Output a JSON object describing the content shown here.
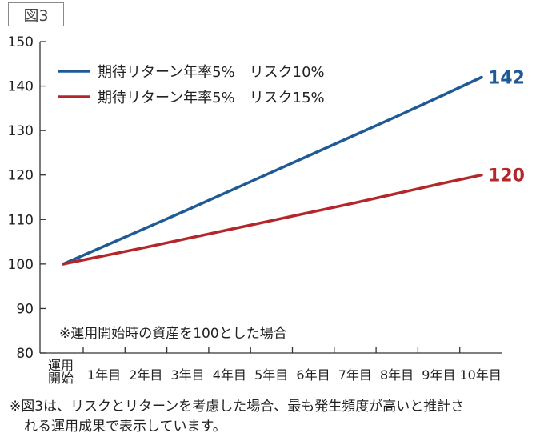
{
  "figure_tag": "図3",
  "chart_data": {
    "type": "line",
    "categories": [
      "運用\n開始",
      "1年目",
      "2年目",
      "3年目",
      "4年目",
      "5年目",
      "6年目",
      "7年目",
      "8年目",
      "9年目",
      "10年目"
    ],
    "y_ticks": [
      80,
      90,
      100,
      110,
      120,
      130,
      140,
      150
    ],
    "ylim": [
      80,
      150
    ],
    "grid": false,
    "legend_position": "top-left",
    "series": [
      {
        "name": "期待リターン年率5%　リスク10%",
        "color": "#1f5a95",
        "values": [
          100,
          104.1,
          108.2,
          112.3,
          116.5,
          120.7,
          124.9,
          129.1,
          133.3,
          137.6,
          142
        ],
        "end_label": "142"
      },
      {
        "name": "期待リターン年率5%　リスク15%",
        "color": "#b3262a",
        "values": [
          100,
          101.9,
          103.8,
          105.8,
          107.8,
          109.8,
          111.8,
          113.8,
          115.9,
          118.0,
          120
        ],
        "end_label": "120"
      }
    ],
    "annotation": "※運用開始時の資産を100とした場合"
  },
  "footnote": {
    "line1": "※図3は、リスクとリターンを考慮した場合、最も発生頻度が高いと推計さ",
    "line2": "れる運用成果で表示しています。"
  }
}
